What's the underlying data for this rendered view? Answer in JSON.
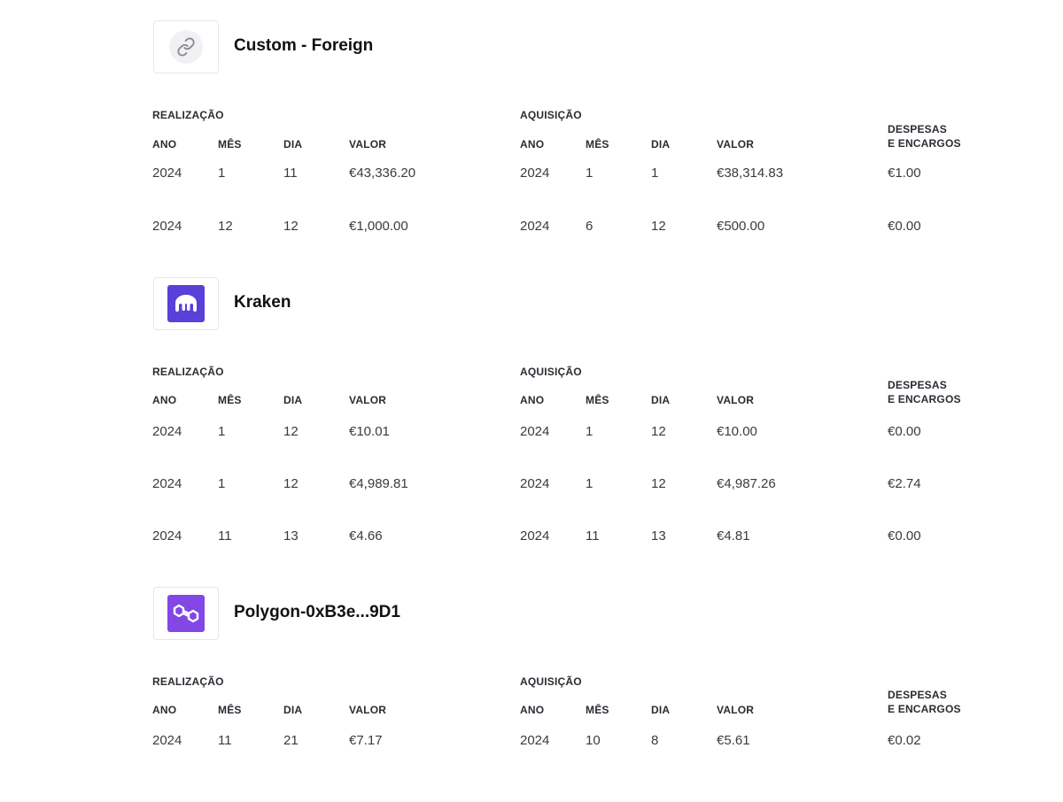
{
  "colors": {
    "kraken_brand": "#5741d9",
    "polygon_brand": "#8247e5"
  },
  "labels": {
    "realizacao": "REALIZAÇÃO",
    "aquisicao": "AQUISIÇÃO",
    "ano": "ANO",
    "mes": "MÊS",
    "dia": "DIA",
    "valor": "VALOR",
    "despesas_line1": "DESPESAS",
    "despesas_line2": "E ENCARGOS"
  },
  "sections": [
    {
      "name": "Custom - Foreign",
      "icon": "link-icon",
      "rows": [
        {
          "r_ano": "2024",
          "r_mes": "1",
          "r_dia": "11",
          "r_valor": "€43,336.20",
          "a_ano": "2024",
          "a_mes": "1",
          "a_dia": "1",
          "a_valor": "€38,314.83",
          "despesas": "€1.00"
        },
        {
          "r_ano": "2024",
          "r_mes": "12",
          "r_dia": "12",
          "r_valor": "€1,000.00",
          "a_ano": "2024",
          "a_mes": "6",
          "a_dia": "12",
          "a_valor": "€500.00",
          "despesas": "€0.00"
        }
      ]
    },
    {
      "name": "Kraken",
      "icon": "kraken-logo-icon",
      "rows": [
        {
          "r_ano": "2024",
          "r_mes": "1",
          "r_dia": "12",
          "r_valor": "€10.01",
          "a_ano": "2024",
          "a_mes": "1",
          "a_dia": "12",
          "a_valor": "€10.00",
          "despesas": "€0.00"
        },
        {
          "r_ano": "2024",
          "r_mes": "1",
          "r_dia": "12",
          "r_valor": "€4,989.81",
          "a_ano": "2024",
          "a_mes": "1",
          "a_dia": "12",
          "a_valor": "€4,987.26",
          "despesas": "€2.74"
        },
        {
          "r_ano": "2024",
          "r_mes": "11",
          "r_dia": "13",
          "r_valor": "€4.66",
          "a_ano": "2024",
          "a_mes": "11",
          "a_dia": "13",
          "a_valor": "€4.81",
          "despesas": "€0.00"
        }
      ]
    },
    {
      "name": "Polygon-0xB3e...9D1",
      "icon": "polygon-logo-icon",
      "rows": [
        {
          "r_ano": "2024",
          "r_mes": "11",
          "r_dia": "21",
          "r_valor": "€7.17",
          "a_ano": "2024",
          "a_mes": "10",
          "a_dia": "8",
          "a_valor": "€5.61",
          "despesas": "€0.02"
        }
      ]
    }
  ]
}
